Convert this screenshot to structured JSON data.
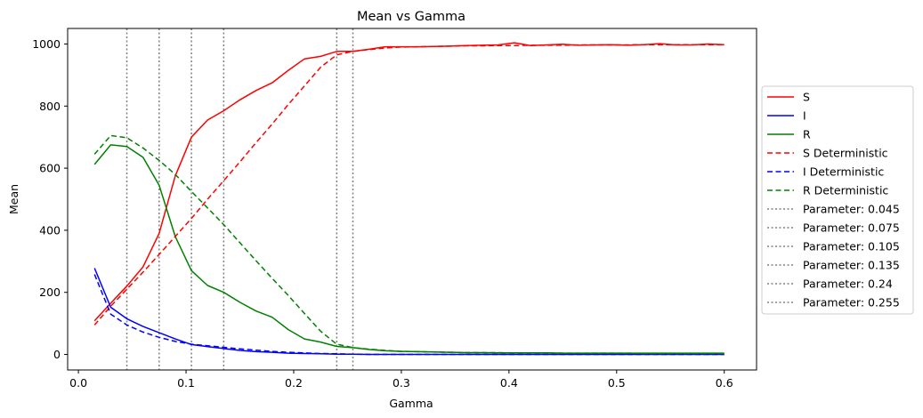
{
  "chart_data": {
    "type": "line",
    "title": "Mean vs Gamma",
    "xlabel": "Gamma",
    "ylabel": "Mean",
    "xlim": [
      -0.01,
      0.63
    ],
    "ylim": [
      -50,
      1050
    ],
    "xticks": [
      0.0,
      0.1,
      0.2,
      0.3,
      0.4,
      0.5,
      0.6
    ],
    "xtick_labels": [
      "0.0",
      "0.1",
      "0.2",
      "0.3",
      "0.4",
      "0.5",
      "0.6"
    ],
    "yticks": [
      0,
      200,
      400,
      600,
      800,
      1000
    ],
    "ytick_labels": [
      "0",
      "200",
      "400",
      "600",
      "800",
      "1000"
    ],
    "grid": false,
    "legend_position": "right-outside",
    "x": [
      0.015,
      0.03,
      0.045,
      0.06,
      0.075,
      0.09,
      0.105,
      0.12,
      0.135,
      0.15,
      0.165,
      0.18,
      0.195,
      0.21,
      0.225,
      0.24,
      0.255,
      0.27,
      0.285,
      0.3,
      0.315,
      0.33,
      0.345,
      0.36,
      0.375,
      0.39,
      0.405,
      0.42,
      0.435,
      0.45,
      0.465,
      0.48,
      0.495,
      0.51,
      0.525,
      0.54,
      0.555,
      0.57,
      0.585,
      0.6
    ],
    "series": [
      {
        "name": "S",
        "color": "#ff0000",
        "dash": "solid",
        "values": [
          108,
          165,
          220,
          282,
          390,
          575,
          700,
          755,
          785,
          820,
          850,
          875,
          915,
          952,
          960,
          976,
          976,
          983,
          991,
          991,
          991,
          992,
          993,
          995,
          996,
          997,
          1004,
          995,
          997,
          999,
          996,
          997,
          998,
          996,
          998,
          1001,
          997,
          997,
          1000,
          998
        ]
      },
      {
        "name": "I",
        "color": "#0000ff",
        "dash": "solid",
        "values": [
          278,
          152,
          115,
          90,
          70,
          50,
          32,
          25,
          19,
          13,
          9,
          7,
          4,
          3,
          2,
          1,
          1,
          0,
          0,
          0,
          0,
          0,
          0,
          0,
          0,
          0,
          0,
          0,
          0,
          0,
          0,
          0,
          0,
          0,
          0,
          0,
          0,
          0,
          0,
          0
        ]
      },
      {
        "name": "R",
        "color": "#008000",
        "dash": "solid",
        "values": [
          612,
          675,
          670,
          635,
          545,
          380,
          270,
          222,
          200,
          168,
          140,
          120,
          80,
          50,
          40,
          26,
          22,
          16,
          12,
          10,
          9,
          8,
          7,
          6,
          6,
          5,
          5,
          5,
          5,
          4,
          4,
          4,
          4,
          4,
          4,
          4,
          4,
          4,
          4,
          4
        ]
      },
      {
        "name": "S Deterministic",
        "color": "#ff0000",
        "dash": "dashed",
        "values": [
          95,
          155,
          210,
          265,
          322,
          380,
          438,
          500,
          560,
          620,
          682,
          742,
          805,
          865,
          925,
          965,
          976,
          982,
          987,
          990,
          991,
          992,
          993,
          994,
          994,
          995,
          995,
          996,
          996,
          996,
          997,
          997,
          997,
          997,
          998,
          998,
          998,
          998,
          998,
          998
        ]
      },
      {
        "name": "I Deterministic",
        "color": "#0000ff",
        "dash": "dashed",
        "values": [
          258,
          130,
          95,
          72,
          55,
          42,
          33,
          28,
          23,
          18,
          14,
          10,
          7,
          5,
          3,
          2,
          1,
          0,
          0,
          0,
          0,
          0,
          0,
          0,
          0,
          0,
          0,
          0,
          0,
          0,
          0,
          0,
          0,
          0,
          0,
          0,
          0,
          0,
          0,
          0
        ]
      },
      {
        "name": "R Deterministic",
        "color": "#008000",
        "dash": "dashed",
        "values": [
          645,
          705,
          698,
          665,
          625,
          580,
          525,
          472,
          418,
          360,
          302,
          245,
          190,
          132,
          75,
          33,
          22,
          17,
          13,
          10,
          9,
          8,
          7,
          6,
          6,
          6,
          5,
          5,
          5,
          4,
          4,
          4,
          4,
          4,
          3,
          3,
          3,
          3,
          3,
          3
        ]
      }
    ],
    "vlines": [
      {
        "name": "Parameter: 0.045",
        "x": 0.045,
        "color": "#808080",
        "dash": "dotted"
      },
      {
        "name": "Parameter: 0.075",
        "x": 0.075,
        "color": "#808080",
        "dash": "dotted"
      },
      {
        "name": "Parameter: 0.105",
        "x": 0.105,
        "color": "#808080",
        "dash": "dotted"
      },
      {
        "name": "Parameter: 0.135",
        "x": 0.135,
        "color": "#808080",
        "dash": "dotted"
      },
      {
        "name": "Parameter: 0.24",
        "x": 0.24,
        "color": "#808080",
        "dash": "dotted"
      },
      {
        "name": "Parameter: 0.255",
        "x": 0.255,
        "color": "#808080",
        "dash": "dotted"
      }
    ]
  }
}
